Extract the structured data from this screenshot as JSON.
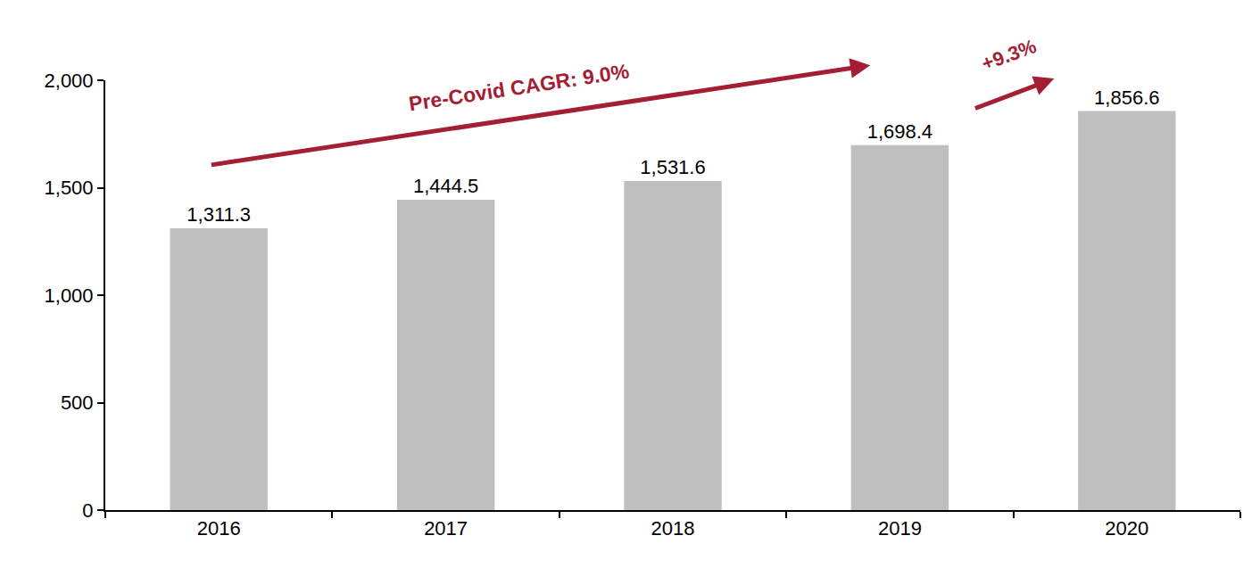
{
  "chart_data": {
    "type": "bar",
    "categories": [
      "2016",
      "2017",
      "2018",
      "2019",
      "2020"
    ],
    "values": [
      1311.3,
      1444.5,
      1531.6,
      1698.4,
      1856.6
    ],
    "value_labels": [
      "1,311.3",
      "1,444.5",
      "1,531.6",
      "1,698.4",
      "1,856.6"
    ],
    "data_labels": true,
    "color": "#bfbfbf",
    "ylim": [
      0,
      2000
    ],
    "yticks": [
      0,
      500,
      {
        "value": 1000,
        "label": "1,000"
      },
      {
        "value": 1500,
        "label": "1,500"
      },
      {
        "value": 2000,
        "label": "2,000"
      }
    ],
    "grid": false,
    "annotations": [
      {
        "text": "Pre-Covid CAGR: 9.0%",
        "color": "#a41e34"
      },
      {
        "text": "+9.3%",
        "color": "#a41e34"
      }
    ]
  }
}
